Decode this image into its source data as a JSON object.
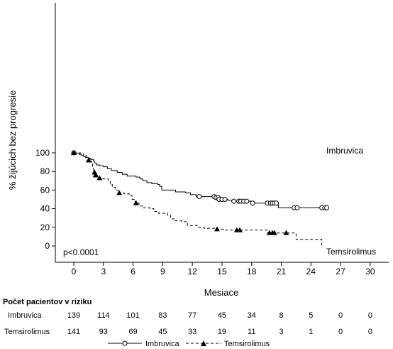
{
  "chart_data": {
    "type": "line",
    "title": "",
    "xlabel": "Mesiace",
    "ylabel": "% žijúcich bez progresie",
    "xlim": [
      0,
      30
    ],
    "ylim": [
      0,
      100
    ],
    "x_ticks": [
      0,
      3,
      6,
      9,
      12,
      15,
      18,
      21,
      24,
      27,
      30
    ],
    "y_ticks": [
      0,
      20,
      40,
      60,
      80,
      100
    ],
    "grid": false,
    "annotation": "p<0.0001",
    "series": [
      {
        "name": "Imbruvica",
        "line_style": "solid",
        "censor_marker": "open-circle",
        "end_label": "Imbruvica",
        "steps": [
          [
            0,
            100
          ],
          [
            0.3,
            99
          ],
          [
            0.6,
            98
          ],
          [
            0.8,
            97
          ],
          [
            1.0,
            96
          ],
          [
            1.2,
            95
          ],
          [
            1.5,
            94
          ],
          [
            1.7,
            93
          ],
          [
            2.0,
            91
          ],
          [
            2.1,
            89
          ],
          [
            2.3,
            87
          ],
          [
            2.6,
            86
          ],
          [
            3.0,
            85
          ],
          [
            3.4,
            83
          ],
          [
            3.8,
            81
          ],
          [
            4.4,
            79
          ],
          [
            4.9,
            77
          ],
          [
            5.4,
            75
          ],
          [
            6.3,
            74
          ],
          [
            6.7,
            72
          ],
          [
            7.0,
            70
          ],
          [
            7.4,
            68
          ],
          [
            7.9,
            67
          ],
          [
            8.5,
            66
          ],
          [
            8.7,
            64
          ],
          [
            8.9,
            60
          ],
          [
            10.3,
            58
          ],
          [
            11.3,
            57
          ],
          [
            11.8,
            55
          ],
          [
            12.4,
            53
          ],
          [
            14.3,
            52
          ],
          [
            14.6,
            51
          ],
          [
            14.9,
            50
          ],
          [
            15.6,
            49
          ],
          [
            16.2,
            48
          ],
          [
            18.0,
            46
          ],
          [
            19.4,
            46
          ],
          [
            20.7,
            41
          ],
          [
            25.7,
            41
          ]
        ],
        "censored": [
          [
            0,
            100
          ],
          [
            12.7,
            53
          ],
          [
            14.2,
            53
          ],
          [
            14.4,
            52
          ],
          [
            14.6,
            52
          ],
          [
            14.7,
            50
          ],
          [
            15.0,
            50
          ],
          [
            15.3,
            50
          ],
          [
            16.2,
            48
          ],
          [
            16.7,
            48
          ],
          [
            16.9,
            48
          ],
          [
            17.2,
            48
          ],
          [
            17.5,
            48
          ],
          [
            18.1,
            46
          ],
          [
            19.6,
            46
          ],
          [
            19.9,
            46
          ],
          [
            20.1,
            46
          ],
          [
            20.3,
            46
          ],
          [
            20.5,
            46
          ],
          [
            22.3,
            41
          ],
          [
            22.6,
            41
          ],
          [
            25.1,
            41
          ],
          [
            25.4,
            41
          ],
          [
            25.6,
            41
          ]
        ]
      },
      {
        "name": "Temsirolimus",
        "line_style": "dashed",
        "censor_marker": "filled-triangle",
        "end_label": "Temsirolimus",
        "steps": [
          [
            0,
            100
          ],
          [
            0.7,
            99
          ],
          [
            1.0,
            97
          ],
          [
            1.3,
            94
          ],
          [
            1.6,
            91
          ],
          [
            1.8,
            88
          ],
          [
            1.9,
            84
          ],
          [
            2.0,
            80
          ],
          [
            2.1,
            78
          ],
          [
            2.2,
            76
          ],
          [
            2.4,
            74
          ],
          [
            2.6,
            72
          ],
          [
            3.5,
            70
          ],
          [
            3.7,
            66
          ],
          [
            3.9,
            63
          ],
          [
            4.2,
            60
          ],
          [
            4.5,
            57
          ],
          [
            5.1,
            56
          ],
          [
            5.6,
            54
          ],
          [
            5.9,
            50
          ],
          [
            6.2,
            46
          ],
          [
            6.6,
            43
          ],
          [
            7.0,
            41
          ],
          [
            7.7,
            40
          ],
          [
            8.1,
            37
          ],
          [
            8.6,
            35
          ],
          [
            9.5,
            33
          ],
          [
            9.8,
            29
          ],
          [
            10.2,
            27
          ],
          [
            10.9,
            26
          ],
          [
            11.5,
            22
          ],
          [
            12.5,
            20
          ],
          [
            13.2,
            19
          ],
          [
            14.3,
            18
          ],
          [
            15.1,
            17
          ],
          [
            15.8,
            17
          ],
          [
            19.6,
            14
          ],
          [
            22.5,
            7
          ],
          [
            25.1,
            7
          ],
          [
            25.1,
            0
          ]
        ],
        "censored": [
          [
            0,
            100
          ],
          [
            1.5,
            92
          ],
          [
            2.1,
            79
          ],
          [
            2.2,
            76
          ],
          [
            2.6,
            73
          ],
          [
            4.6,
            57
          ],
          [
            6.3,
            46
          ],
          [
            14.5,
            18
          ],
          [
            16.5,
            17
          ],
          [
            16.8,
            17
          ],
          [
            19.8,
            14
          ],
          [
            20.1,
            14
          ],
          [
            20.3,
            14
          ],
          [
            21.5,
            14
          ]
        ]
      }
    ],
    "risk_table": {
      "title": "Počet pacientov v riziku",
      "times": [
        0,
        3,
        6,
        9,
        12,
        15,
        18,
        21,
        24,
        27,
        30
      ],
      "rows": [
        {
          "name": "Imbruvica",
          "values": [
            139,
            114,
            101,
            83,
            77,
            45,
            34,
            8,
            5,
            0,
            0
          ]
        },
        {
          "name": "Temsirolimus",
          "values": [
            141,
            93,
            69,
            45,
            33,
            19,
            11,
            3,
            1,
            0,
            0
          ]
        }
      ]
    },
    "legend": {
      "placement": "bottom-center",
      "entries": [
        "Imbruvica",
        "Temsirolimus"
      ]
    }
  }
}
